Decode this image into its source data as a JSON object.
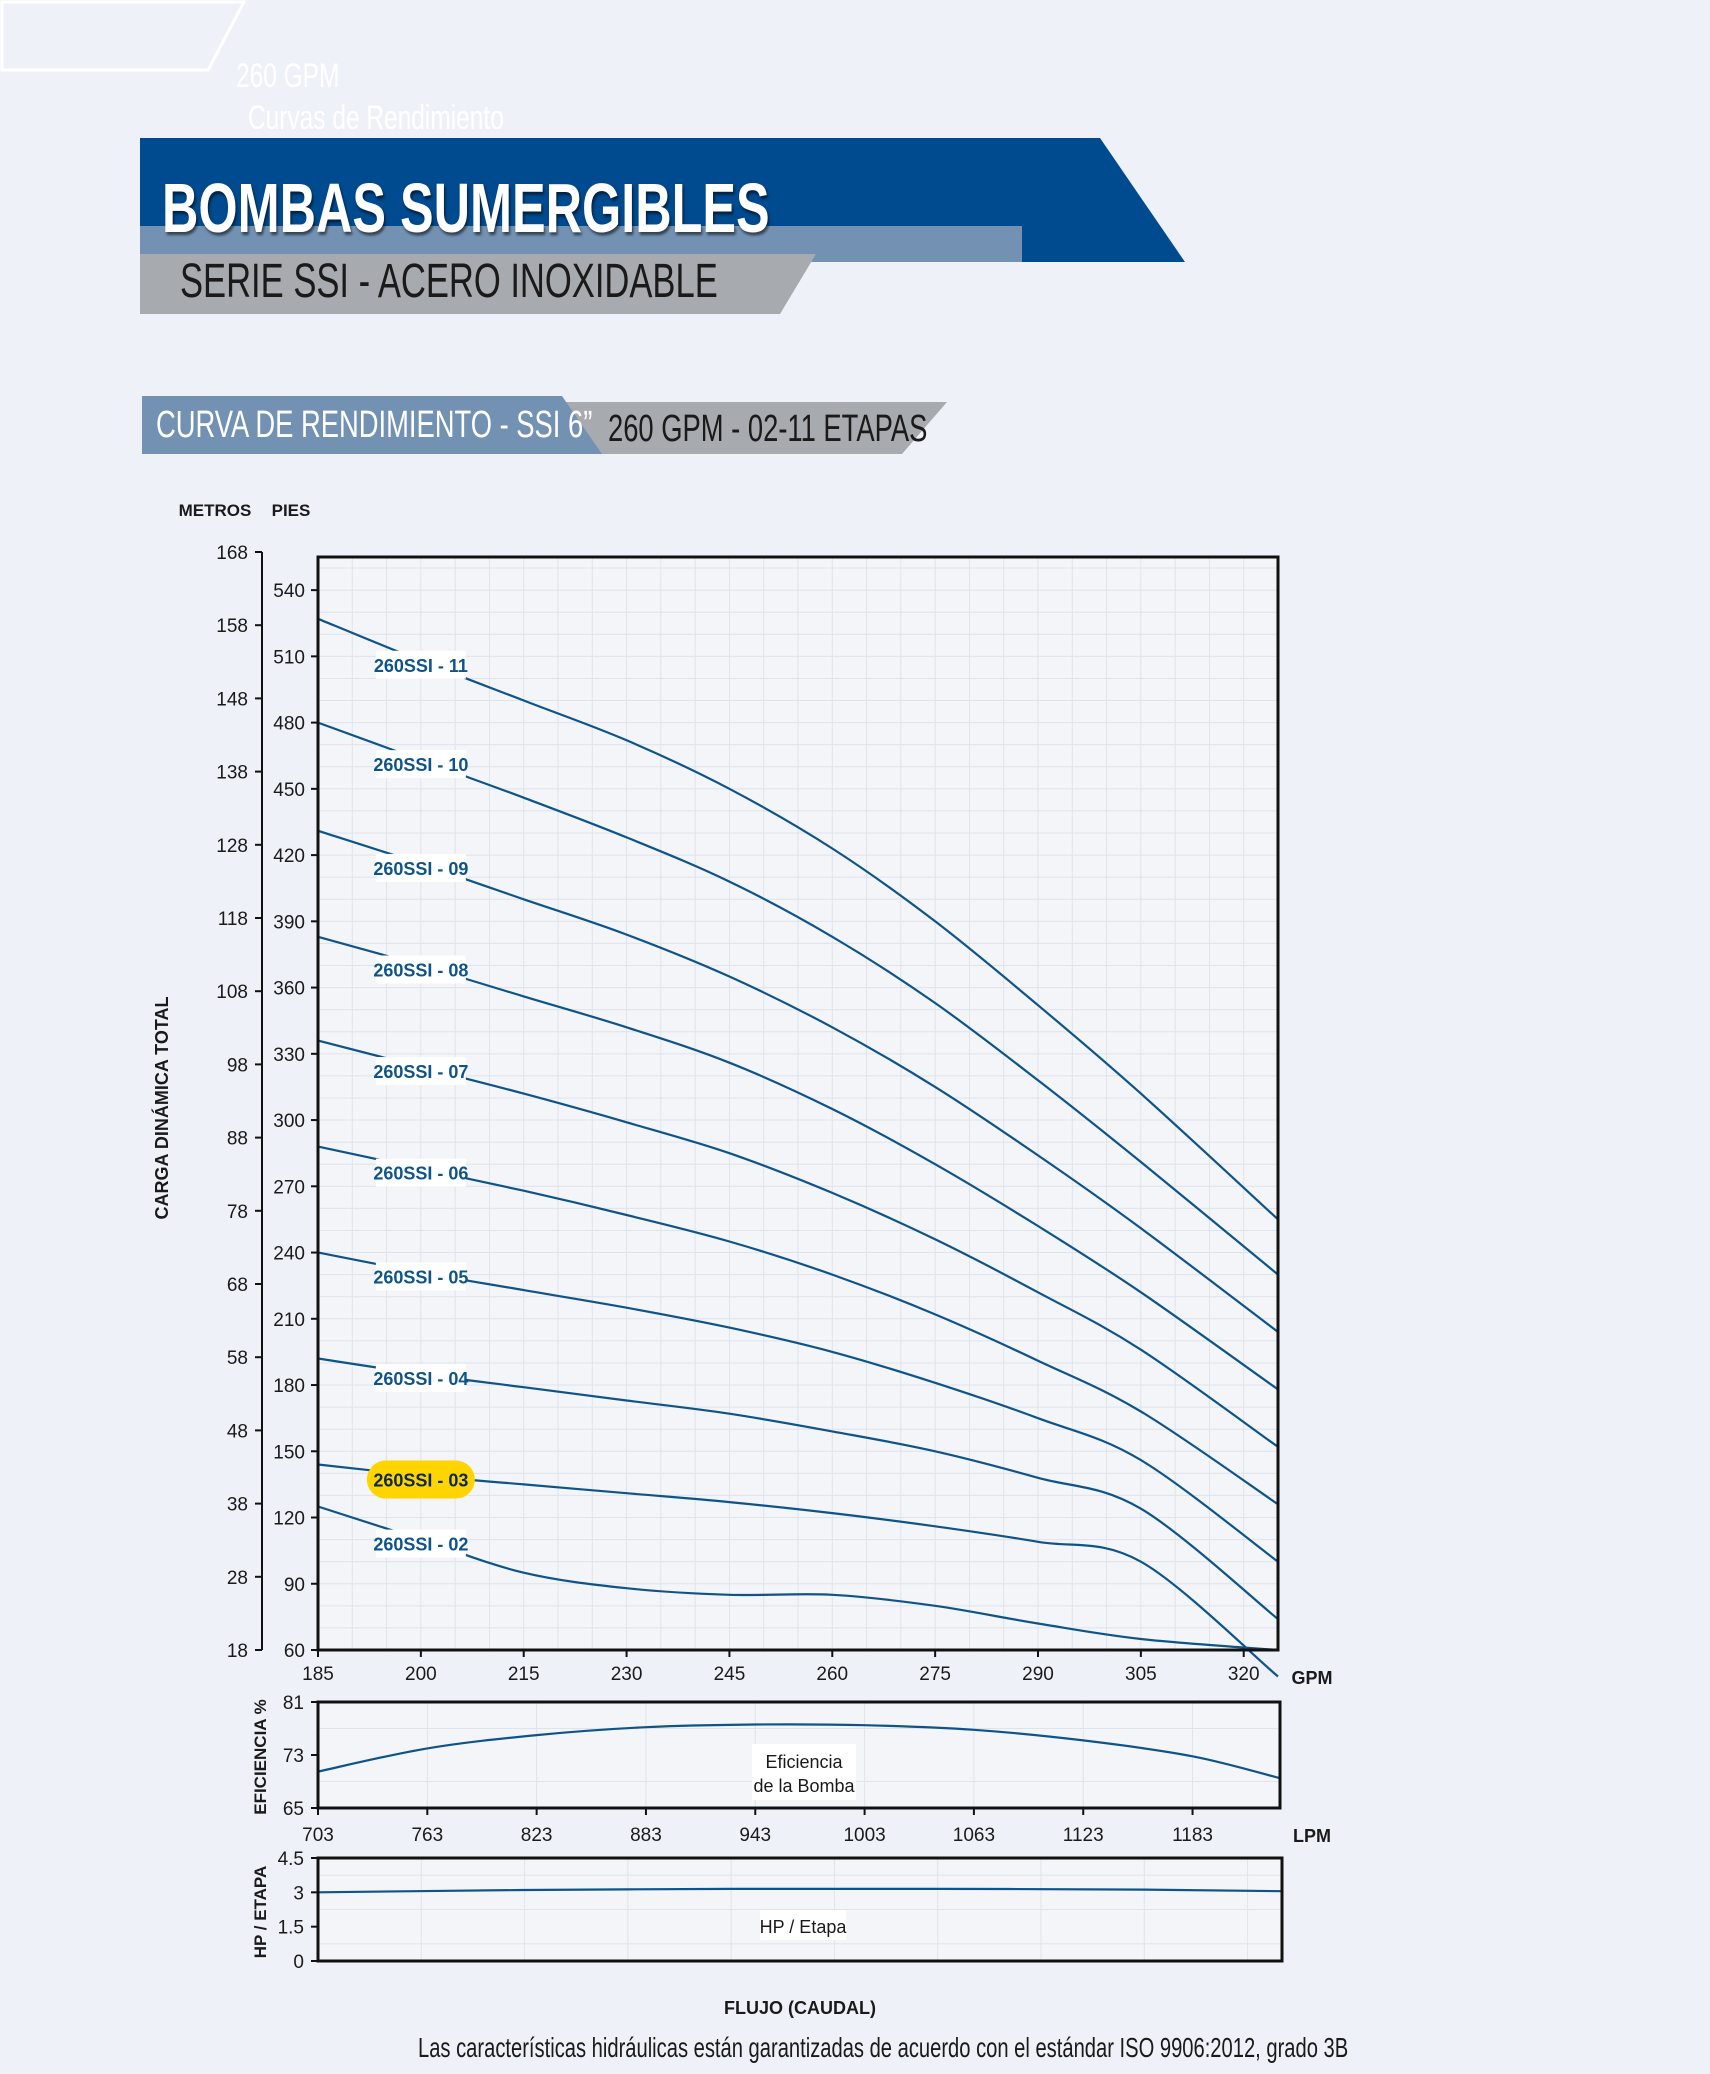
{
  "header": {
    "ghost_title": "260 GPM",
    "ghost_subtitle": "Curvas de Rendimiento",
    "brand_title": "BOMBAS SUMERGIBLES",
    "brand_subtitle": "SERIE SSI - ACERO INOXIDABLE",
    "section_left": "CURVA DE RENDIMIENTO - SSI 6”",
    "section_right": "260 GPM - 02-11 ETAPAS"
  },
  "colors": {
    "brand_blue": "#004a8f",
    "steel_blue": "#7392b3",
    "gray_band": "#a7aaaf",
    "curve_blue": "#0f5488",
    "grid": "#dfe4ea",
    "highlight": "#ffd400"
  },
  "footnote": "Las características hidráulicas están garantizadas de acuerdo con el estándar ISO 9906:2012, grado 3B",
  "chart_data": [
    {
      "type": "line",
      "unit_metros_label": "METROS",
      "unit_pies_label": "PIES",
      "ylabel": "CARGA DINÁMICA TOTAL",
      "x_unit": "GPM",
      "xlim": [
        185,
        325
      ],
      "x_ticks": [
        185,
        200,
        215,
        230,
        245,
        260,
        275,
        290,
        305,
        320
      ],
      "ylim": [
        60,
        555
      ],
      "y_ticks_pies": [
        60,
        90,
        120,
        150,
        180,
        210,
        240,
        270,
        300,
        330,
        360,
        390,
        420,
        450,
        480,
        510,
        540
      ],
      "y_ticks_metros": [
        18,
        28,
        38,
        48,
        58,
        68,
        78,
        88,
        98,
        108,
        118,
        128,
        138,
        148,
        158,
        168
      ],
      "grid": true,
      "x": [
        185,
        200,
        215,
        230,
        245,
        260,
        275,
        290,
        305,
        325
      ],
      "series": [
        {
          "name": "260SSI - 11",
          "label_x": 200,
          "values": [
            527,
            508,
            490,
            472,
            450,
            423,
            390,
            352,
            312,
            255
          ]
        },
        {
          "name": "260SSI - 10",
          "label_x": 200,
          "values": [
            480,
            463,
            446,
            428,
            408,
            383,
            353,
            318,
            281,
            230
          ]
        },
        {
          "name": "260SSI - 09",
          "label_x": 200,
          "values": [
            431,
            416,
            400,
            384,
            365,
            342,
            315,
            284,
            251,
            204
          ]
        },
        {
          "name": "260SSI - 08",
          "label_x": 200,
          "values": [
            383,
            370,
            356,
            342,
            326,
            305,
            280,
            252,
            222,
            178
          ]
        },
        {
          "name": "260SSI - 07",
          "label_x": 200,
          "values": [
            336,
            324,
            312,
            299,
            285,
            267,
            246,
            222,
            196,
            152
          ]
        },
        {
          "name": "260SSI - 06",
          "label_x": 200,
          "values": [
            288,
            278,
            268,
            257,
            245,
            230,
            212,
            191,
            168,
            126
          ]
        },
        {
          "name": "260SSI - 05",
          "label_x": 200,
          "values": [
            240,
            231,
            223,
            215,
            206,
            195,
            181,
            165,
            146,
            100
          ]
        },
        {
          "name": "260SSI - 04",
          "label_x": 200,
          "values": [
            192,
            185,
            179,
            173,
            167,
            159,
            150,
            138,
            124,
            74
          ]
        },
        {
          "name": "260SSI - 03",
          "label_x": 200,
          "highlight": true,
          "values": [
            144,
            139,
            135,
            131,
            127,
            122,
            116,
            109,
            100,
            48
          ]
        },
        {
          "name": "260SSI - 02",
          "label_x": 200,
          "values": [
            125,
            110,
            95,
            88,
            85,
            85,
            80,
            72,
            65,
            60
          ]
        }
      ]
    },
    {
      "type": "line",
      "ylabel": "EFICIENCIA %",
      "annotation": [
        "Eficiencia",
        "de la Bomba"
      ],
      "ylim": [
        65,
        81
      ],
      "y_ticks": [
        65,
        73,
        81
      ],
      "x_unit": "LPM",
      "xlim": [
        703,
        1231
      ],
      "x_ticks": [
        703,
        763,
        823,
        883,
        943,
        1003,
        1063,
        1123,
        1183
      ],
      "grid": true,
      "x": [
        703,
        763,
        823,
        883,
        943,
        1003,
        1063,
        1123,
        1183,
        1231
      ],
      "values": [
        70.5,
        74,
        76,
        77.2,
        77.6,
        77.5,
        76.8,
        75.2,
        72.8,
        69.5
      ]
    },
    {
      "type": "line",
      "ylabel": "HP / ETAPA",
      "annotation": "HP / Etapa",
      "ylim": [
        0,
        4.5
      ],
      "y_ticks": [
        0,
        1.5,
        3,
        4.5
      ],
      "xlabel": "FLUJO (CAUDAL)",
      "grid": true,
      "x": [
        185,
        215,
        245,
        275,
        305,
        325
      ],
      "values": [
        3.0,
        3.1,
        3.15,
        3.15,
        3.12,
        3.05
      ]
    }
  ]
}
